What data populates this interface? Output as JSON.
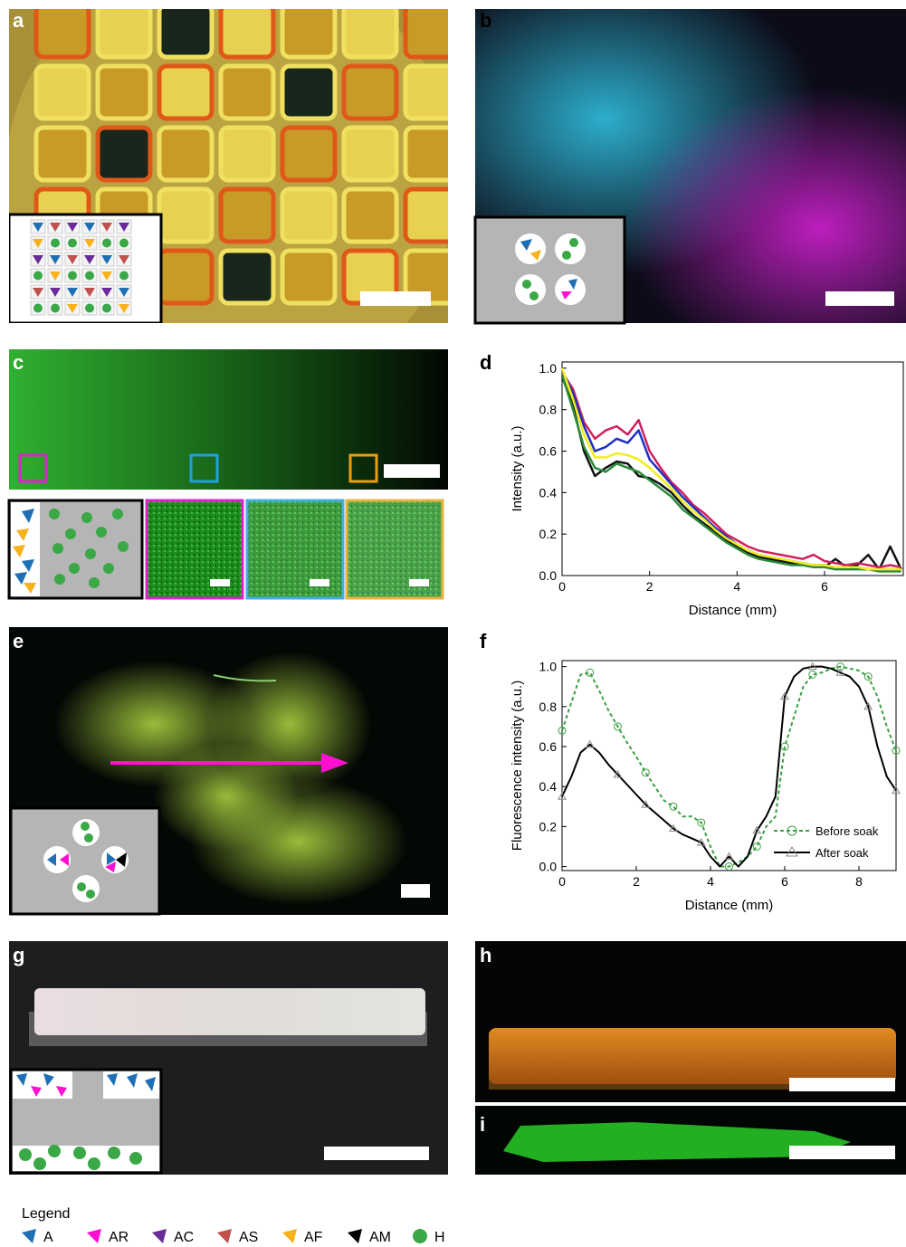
{
  "panel_labels": [
    "a",
    "b",
    "c",
    "d",
    "e",
    "f",
    "g",
    "h",
    "i"
  ],
  "chart_data": [
    {
      "type": "line",
      "xlabel": "Distance (mm)",
      "ylabel": "Intensity (a.u.)",
      "xlim": [
        0,
        7.8
      ],
      "ylim": [
        0,
        1.03
      ],
      "xticks": [
        0,
        2,
        4,
        6
      ],
      "yticks": [
        {
          "value": 0,
          "label": "0.0"
        },
        0.2,
        0.4,
        0.6,
        0.8,
        {
          "value": 1,
          "label": "1.0"
        }
      ],
      "x": [
        0,
        0.25,
        0.5,
        0.75,
        1,
        1.25,
        1.5,
        1.75,
        2,
        2.25,
        2.5,
        2.75,
        3,
        3.25,
        3.5,
        3.75,
        4,
        4.25,
        4.5,
        4.75,
        5,
        5.25,
        5.5,
        5.75,
        6,
        6.25,
        6.5,
        6.75,
        7,
        7.25,
        7.5,
        7.75
      ],
      "series": [
        {
          "color": "#111111",
          "values": [
            0.96,
            0.82,
            0.6,
            0.48,
            0.52,
            0.55,
            0.54,
            0.48,
            0.47,
            0.44,
            0.4,
            0.34,
            0.29,
            0.25,
            0.21,
            0.17,
            0.14,
            0.11,
            0.09,
            0.08,
            0.07,
            0.06,
            0.05,
            0.05,
            0.04,
            0.08,
            0.04,
            0.05,
            0.1,
            0.03,
            0.14,
            0.03
          ]
        },
        {
          "color": "#2a8a3a",
          "values": [
            0.97,
            0.8,
            0.62,
            0.52,
            0.5,
            0.54,
            0.52,
            0.5,
            0.46,
            0.42,
            0.38,
            0.32,
            0.28,
            0.24,
            0.2,
            0.16,
            0.13,
            0.1,
            0.08,
            0.07,
            0.06,
            0.05,
            0.05,
            0.04,
            0.04,
            0.03,
            0.03,
            0.03,
            0.03,
            0.02,
            0.02,
            0.02
          ]
        },
        {
          "color": "#d02060",
          "values": [
            0.98,
            0.9,
            0.74,
            0.66,
            0.7,
            0.72,
            0.68,
            0.75,
            0.6,
            0.52,
            0.45,
            0.4,
            0.34,
            0.3,
            0.25,
            0.2,
            0.17,
            0.14,
            0.12,
            0.11,
            0.1,
            0.09,
            0.08,
            0.1,
            0.07,
            0.06,
            0.05,
            0.06,
            0.05,
            0.04,
            0.05,
            0.04
          ]
        },
        {
          "color": "#2030c0",
          "values": [
            0.99,
            0.88,
            0.72,
            0.6,
            0.62,
            0.66,
            0.64,
            0.7,
            0.56,
            0.5,
            0.44,
            0.38,
            0.33,
            0.28,
            0.23,
            0.19,
            0.15,
            0.12,
            0.1,
            0.09,
            0.08,
            0.07,
            0.06,
            0.05,
            0.05,
            0.04,
            0.04,
            0.04,
            0.03,
            0.03,
            0.03,
            0.03
          ]
        },
        {
          "color": "#f2ee1a",
          "values": [
            1.0,
            0.85,
            0.68,
            0.57,
            0.57,
            0.59,
            0.58,
            0.56,
            0.52,
            0.47,
            0.42,
            0.36,
            0.31,
            0.27,
            0.22,
            0.18,
            0.15,
            0.12,
            0.1,
            0.09,
            0.08,
            0.07,
            0.06,
            0.05,
            0.05,
            0.04,
            0.04,
            0.04,
            0.03,
            0.03,
            0.03,
            0.03
          ]
        }
      ]
    },
    {
      "type": "line",
      "xlabel": "Distance (mm)",
      "ylabel": "Fluorescence intensity (a.u.)",
      "xlim": [
        0,
        9
      ],
      "ylim": [
        -0.02,
        1.03
      ],
      "xticks": [
        0,
        2,
        4,
        6,
        8
      ],
      "yticks": [
        {
          "value": 0,
          "label": "0.0"
        },
        0.2,
        0.4,
        0.6,
        0.8,
        {
          "value": 1,
          "label": "1.0"
        }
      ],
      "legend": "lower right",
      "x": [
        0,
        0.25,
        0.5,
        0.75,
        1,
        1.25,
        1.5,
        1.75,
        2,
        2.25,
        2.5,
        2.75,
        3,
        3.25,
        3.5,
        3.75,
        4,
        4.25,
        4.5,
        4.75,
        5,
        5.25,
        5.5,
        5.75,
        6,
        6.25,
        6.5,
        6.75,
        7,
        7.25,
        7.5,
        7.75,
        8,
        8.25,
        8.5,
        8.75,
        9
      ],
      "series": [
        {
          "name": "Before soak",
          "color": "#3aa040",
          "dash": true,
          "marker": "circle",
          "values": [
            0.68,
            0.82,
            0.96,
            0.97,
            0.88,
            0.78,
            0.7,
            0.62,
            0.55,
            0.47,
            0.4,
            0.33,
            0.3,
            0.25,
            0.25,
            0.22,
            0.1,
            0.0,
            0.0,
            0.02,
            0.05,
            0.1,
            0.2,
            0.25,
            0.6,
            0.75,
            0.9,
            0.96,
            0.97,
            0.99,
            1.0,
            0.99,
            0.98,
            0.95,
            0.85,
            0.7,
            0.58
          ]
        },
        {
          "name": "After soak",
          "color": "#000000",
          "dash": false,
          "marker": "triangle",
          "values": [
            0.35,
            0.45,
            0.57,
            0.61,
            0.57,
            0.51,
            0.46,
            0.41,
            0.36,
            0.31,
            0.27,
            0.23,
            0.19,
            0.16,
            0.14,
            0.12,
            0.05,
            0.0,
            0.05,
            0.0,
            0.05,
            0.18,
            0.25,
            0.35,
            0.85,
            0.95,
            0.99,
            1.0,
            1.0,
            0.99,
            0.97,
            0.95,
            0.9,
            0.8,
            0.6,
            0.45,
            0.38
          ]
        }
      ]
    }
  ],
  "legend": {
    "title": "Legend",
    "items": [
      {
        "label": "A",
        "color": "#1f6fb5"
      },
      {
        "label": "AR",
        "color": "#ff10d0"
      },
      {
        "label": "AC",
        "color": "#6a2a9a"
      },
      {
        "label": "AS",
        "color": "#c0504d"
      },
      {
        "label": "AF",
        "color": "#f7b21a"
      },
      {
        "label": "AM",
        "color": "#000000"
      },
      {
        "label": "H",
        "color": "#3aa846"
      }
    ]
  }
}
